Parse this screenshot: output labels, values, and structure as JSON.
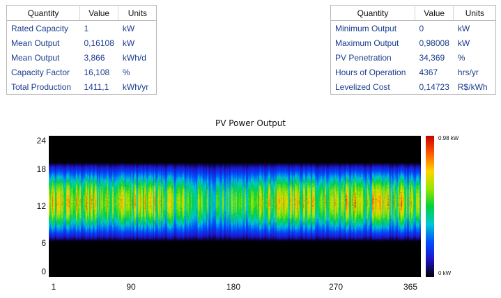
{
  "left_table": {
    "headers": [
      "Quantity",
      "Value",
      "Units"
    ],
    "rows": [
      [
        "Rated Capacity",
        "1",
        "kW"
      ],
      [
        "Mean Output",
        "0,16108",
        "kW"
      ],
      [
        "Mean Output",
        "3,866",
        "kWh/d"
      ],
      [
        "Capacity Factor",
        "16,108",
        "%"
      ],
      [
        "Total Production",
        "1411,1",
        "kWh/yr"
      ]
    ]
  },
  "right_table": {
    "headers": [
      "Quantity",
      "Value",
      "Units"
    ],
    "rows": [
      [
        "Minimum Output",
        "0",
        "kW"
      ],
      [
        "Maximum Output",
        "0,98008",
        "kW"
      ],
      [
        "PV Penetration",
        "34,369",
        "%"
      ],
      [
        "Hours of Operation",
        "4367",
        "hrs/yr"
      ],
      [
        "Levelized Cost",
        "0,14723",
        "R$/kWh"
      ]
    ]
  },
  "chart_data": {
    "type": "heatmap",
    "title": "PV Power Output",
    "x_axis": {
      "ticks": [
        "1",
        "90",
        "180",
        "270",
        "365"
      ],
      "range": [
        1,
        365
      ]
    },
    "y_axis": {
      "ticks": [
        "24",
        "18",
        "12",
        "6",
        "0"
      ],
      "range": [
        0,
        24
      ]
    },
    "colorbar": {
      "max_label": "0.98 kW",
      "min_label": "0 kW",
      "range": [
        0,
        0.98
      ]
    },
    "daylight_start_hour_approx": 6,
    "daylight_end_hour_approx": 19.5,
    "peak_hour_approx": 12.5
  },
  "colors": {
    "text": "#1a3c8c",
    "border": "#b8b8b8",
    "plot_background": "#000000"
  }
}
